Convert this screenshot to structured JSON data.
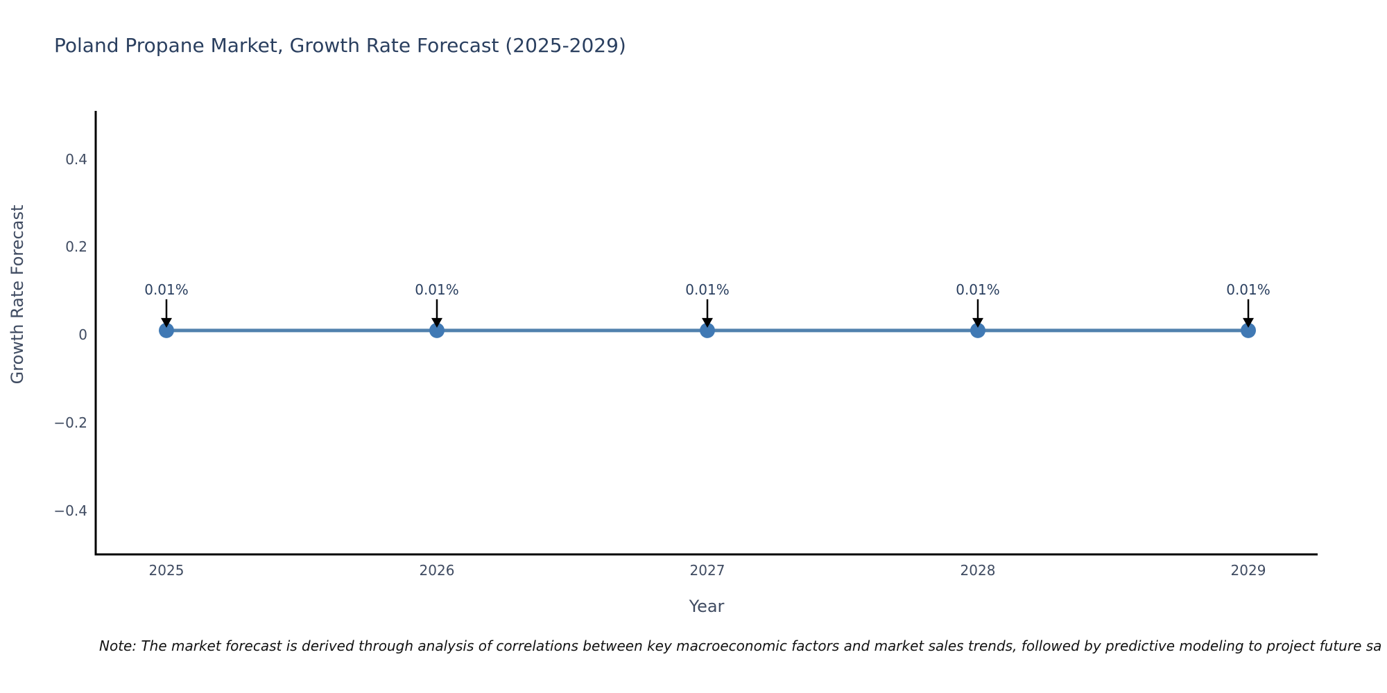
{
  "title": "Poland Propane Market, Growth Rate Forecast (2025-2029)",
  "note": "Note: The market forecast is derived through analysis of correlations between key macroeconomic factors and market sales trends, followed by predictive modeling to project future sa",
  "colors": {
    "title_text": "#2a3f5f",
    "tick_text": "#3f4b61",
    "axis_line": "#000000",
    "trace_line": "#5181ad",
    "marker_fill": "#4079b4",
    "arrow": "#000000",
    "note_text": "#111111",
    "background": "#ffffff"
  },
  "chart_data": {
    "type": "line",
    "categories": [
      "2025",
      "2026",
      "2027",
      "2028",
      "2029"
    ],
    "values": [
      0.01,
      0.01,
      0.01,
      0.01,
      0.01
    ],
    "point_labels": [
      "0.01%",
      "0.01%",
      "0.01%",
      "0.01%",
      "0.01%"
    ],
    "title": "Poland Propane Market, Growth Rate Forecast (2025-2029)",
    "xlabel": "Year",
    "ylabel": "Growth Rate Forecast",
    "ylim": [
      -0.5,
      0.51
    ],
    "yticks": [
      0.4,
      0.2,
      0,
      -0.2,
      -0.4
    ],
    "grid": false,
    "legend": "none",
    "markers": true,
    "annotation_arrows": true
  }
}
